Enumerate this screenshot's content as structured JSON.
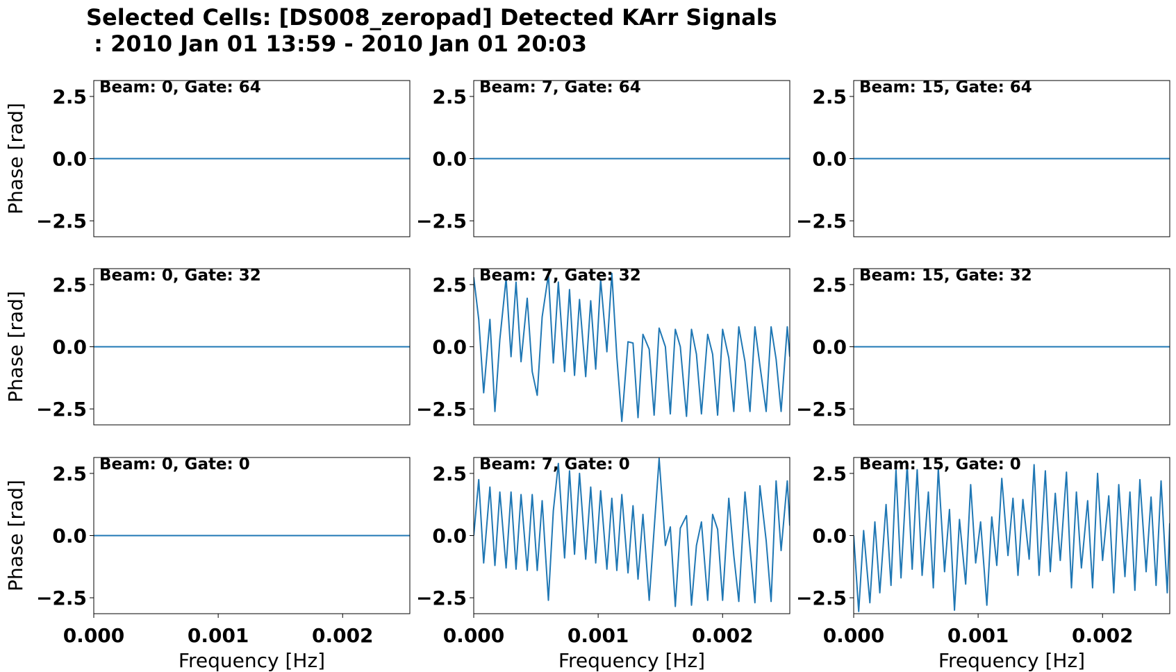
{
  "title_line1": "Selected Cells: [DS008_zeropad] Detected KArr Signals",
  "title_line2": " : 2010 Jan 01 13:59 - 2010 Jan 01 20:03",
  "chart_data": [
    {
      "type": "line",
      "label": "Beam: 0, Gate: 64",
      "xlabel": "",
      "ylabel": "Phase [rad]",
      "xlim": [
        0,
        0.00254
      ],
      "ylim": [
        -3.14,
        3.14
      ],
      "y_ticks": [
        "2.5",
        "0.0",
        "−2.5"
      ],
      "x_ticks": [],
      "series": [
        {
          "x": [
            0,
            0.00254
          ],
          "y": [
            0,
            0
          ]
        }
      ]
    },
    {
      "type": "line",
      "label": "Beam: 7, Gate: 64",
      "xlabel": "",
      "ylabel": "",
      "xlim": [
        0,
        0.00254
      ],
      "ylim": [
        -3.14,
        3.14
      ],
      "y_ticks": [
        "2.5",
        "0.0",
        "−2.5"
      ],
      "x_ticks": [],
      "series": [
        {
          "x": [
            0,
            0.00254
          ],
          "y": [
            0,
            0
          ]
        }
      ]
    },
    {
      "type": "line",
      "label": "Beam: 15, Gate: 64",
      "xlabel": "",
      "ylabel": "",
      "xlim": [
        0,
        0.00254
      ],
      "ylim": [
        -3.14,
        3.14
      ],
      "y_ticks": [
        "2.5",
        "0.0",
        "−2.5"
      ],
      "x_ticks": [],
      "series": [
        {
          "x": [
            0,
            0.00254
          ],
          "y": [
            0,
            0
          ]
        }
      ]
    },
    {
      "type": "line",
      "label": "Beam: 0, Gate: 32",
      "xlabel": "",
      "ylabel": "Phase [rad]",
      "xlim": [
        0,
        0.00254
      ],
      "ylim": [
        -3.14,
        3.14
      ],
      "y_ticks": [
        "2.5",
        "0.0",
        "−2.5"
      ],
      "x_ticks": [],
      "series": [
        {
          "x": [
            0,
            0.00254
          ],
          "y": [
            0,
            0
          ]
        }
      ]
    },
    {
      "type": "line",
      "label": "Beam: 7, Gate: 32",
      "xlabel": "",
      "ylabel": "",
      "xlim": [
        0,
        0.00254
      ],
      "ylim": [
        -3.14,
        3.14
      ],
      "y_ticks": [
        "2.5",
        "0.0",
        "−2.5"
      ],
      "x_ticks": [],
      "series": [
        {
          "x": [
            0,
            4e-05,
            8e-05,
            0.00013,
            0.00017,
            0.00021,
            0.00026,
            0.0003,
            0.00034,
            0.00038,
            0.00043,
            0.00047,
            0.00051,
            0.00055,
            0.0006,
            0.00064,
            0.00068,
            0.00073,
            0.00077,
            0.00081,
            0.00085,
            0.0009,
            0.00094,
            0.00098,
            0.00102,
            0.00107,
            0.00111,
            0.00115,
            0.00119,
            0.00124,
            0.00128,
            0.00132,
            0.00136,
            0.00141,
            0.00145,
            0.00149,
            0.00154,
            0.00158,
            0.00162,
            0.00166,
            0.00171,
            0.00175,
            0.00179,
            0.00183,
            0.00188,
            0.00192,
            0.00196,
            0.002,
            0.00205,
            0.00209,
            0.00213,
            0.00218,
            0.00222,
            0.00226,
            0.0023,
            0.00235,
            0.00239,
            0.00243,
            0.00247,
            0.00252,
            0.00254
          ],
          "y": [
            2.8,
            1.1,
            -1.85,
            1.1,
            -2.6,
            0.3,
            2.75,
            -0.4,
            2.6,
            -0.6,
            1.95,
            -1.0,
            -1.95,
            1.2,
            2.9,
            -0.65,
            2.6,
            -1.0,
            2.3,
            -1.15,
            1.9,
            -1.2,
            1.85,
            -0.9,
            2.7,
            -0.2,
            2.95,
            -0.4,
            -3.0,
            0.2,
            0.15,
            -2.85,
            0.5,
            -0.1,
            -2.75,
            0.75,
            0.0,
            -2.7,
            0.7,
            0.0,
            -2.8,
            0.7,
            -0.3,
            -2.7,
            0.5,
            -0.3,
            -2.75,
            0.7,
            -0.45,
            -2.6,
            0.8,
            -0.6,
            -2.6,
            0.8,
            -0.75,
            -2.6,
            0.8,
            -0.5,
            -2.6,
            0.8,
            -0.4
          ]
        }
      ]
    },
    {
      "type": "line",
      "label": "Beam: 15, Gate: 32",
      "xlabel": "",
      "ylabel": "",
      "xlim": [
        0,
        0.00254
      ],
      "ylim": [
        -3.14,
        3.14
      ],
      "y_ticks": [
        "2.5",
        "0.0",
        "−2.5"
      ],
      "x_ticks": [],
      "series": [
        {
          "x": [
            0,
            0.00254
          ],
          "y": [
            0,
            0
          ]
        }
      ]
    },
    {
      "type": "line",
      "label": "Beam: 0, Gate: 0",
      "xlabel": "Frequency [Hz]",
      "ylabel": "Phase [rad]",
      "xlim": [
        0,
        0.00254
      ],
      "ylim": [
        -3.14,
        3.14
      ],
      "y_ticks": [
        "2.5",
        "0.0",
        "−2.5"
      ],
      "x_ticks": [
        "0.000",
        "0.001",
        "0.002"
      ],
      "series": [
        {
          "x": [
            0,
            0.00254
          ],
          "y": [
            0,
            0
          ]
        }
      ]
    },
    {
      "type": "line",
      "label": "Beam: 7, Gate: 0",
      "xlabel": "Frequency [Hz]",
      "ylabel": "",
      "xlim": [
        0,
        0.00254
      ],
      "ylim": [
        -3.14,
        3.14
      ],
      "y_ticks": [
        "2.5",
        "0.0",
        "−2.5"
      ],
      "x_ticks": [
        "0.000",
        "0.001",
        "0.002"
      ],
      "series": [
        {
          "x": [
            0,
            4e-05,
            8e-05,
            0.00013,
            0.00017,
            0.00021,
            0.00026,
            0.0003,
            0.00034,
            0.00038,
            0.00043,
            0.00047,
            0.00051,
            0.00055,
            0.0006,
            0.00064,
            0.00068,
            0.00073,
            0.00077,
            0.00081,
            0.00085,
            0.0009,
            0.00094,
            0.00098,
            0.00102,
            0.00107,
            0.00111,
            0.00115,
            0.00119,
            0.00124,
            0.00128,
            0.00132,
            0.00136,
            0.00141,
            0.00145,
            0.00149,
            0.00154,
            0.00158,
            0.00162,
            0.00166,
            0.00171,
            0.00175,
            0.00179,
            0.00183,
            0.00188,
            0.00192,
            0.00196,
            0.002,
            0.00205,
            0.00209,
            0.00213,
            0.00218,
            0.00222,
            0.00226,
            0.0023,
            0.00235,
            0.00239,
            0.00243,
            0.00247,
            0.00252,
            0.00254
          ],
          "y": [
            0.0,
            2.25,
            -1.1,
            1.95,
            -1.2,
            1.75,
            -1.3,
            1.75,
            -1.35,
            1.65,
            -1.4,
            1.65,
            -1.4,
            1.4,
            -2.6,
            1.0,
            2.9,
            -0.9,
            2.6,
            -0.75,
            2.5,
            -0.95,
            1.95,
            -1.1,
            1.8,
            -1.35,
            1.5,
            -1.4,
            1.65,
            -1.5,
            1.2,
            -1.75,
            0.85,
            -2.6,
            0.25,
            3.1,
            -0.4,
            0.35,
            -2.85,
            0.3,
            0.8,
            -2.8,
            -0.4,
            0.55,
            -2.6,
            0.85,
            0.25,
            -2.6,
            1.5,
            -0.8,
            -2.65,
            1.75,
            -0.5,
            -2.7,
            2.0,
            -0.2,
            -2.65,
            2.2,
            -0.6,
            2.2,
            0.4
          ]
        }
      ]
    },
    {
      "type": "line",
      "label": "Beam: 15, Gate: 0",
      "xlabel": "Frequency [Hz]",
      "ylabel": "",
      "xlim": [
        0,
        0.00254
      ],
      "ylim": [
        -3.14,
        3.14
      ],
      "y_ticks": [
        "2.5",
        "0.0",
        "−2.5"
      ],
      "x_ticks": [
        "0.000",
        "0.001",
        "0.002"
      ],
      "series": [
        {
          "x": [
            0,
            4e-05,
            8e-05,
            0.00013,
            0.00017,
            0.00021,
            0.00026,
            0.0003,
            0.00034,
            0.00038,
            0.00043,
            0.00047,
            0.00051,
            0.00055,
            0.0006,
            0.00064,
            0.00068,
            0.00073,
            0.00077,
            0.00081,
            0.00085,
            0.0009,
            0.00094,
            0.00098,
            0.00102,
            0.00107,
            0.00111,
            0.00115,
            0.00119,
            0.00124,
            0.00128,
            0.00132,
            0.00136,
            0.00141,
            0.00145,
            0.00149,
            0.00154,
            0.00158,
            0.00162,
            0.00166,
            0.00171,
            0.00175,
            0.00179,
            0.00183,
            0.00188,
            0.00192,
            0.00196,
            0.002,
            0.00205,
            0.00209,
            0.00213,
            0.00218,
            0.00222,
            0.00226,
            0.0023,
            0.00235,
            0.00239,
            0.00243,
            0.00247,
            0.00252,
            0.00254
          ],
          "y": [
            0.0,
            -3.05,
            0.2,
            -2.7,
            0.55,
            -2.3,
            1.25,
            -2.0,
            2.65,
            -1.7,
            2.85,
            -1.35,
            2.65,
            -1.6,
            1.75,
            -2.1,
            2.7,
            -1.45,
            1.05,
            -3.0,
            0.65,
            -1.95,
            2.05,
            -1.1,
            0.55,
            -2.8,
            0.75,
            -1.2,
            2.3,
            -0.8,
            1.5,
            -1.6,
            1.45,
            -0.95,
            2.85,
            -1.6,
            2.6,
            -1.45,
            1.7,
            -1.0,
            2.55,
            -2.1,
            1.75,
            -1.3,
            1.4,
            -2.1,
            2.5,
            -1.0,
            1.6,
            -2.3,
            2.05,
            -1.65,
            1.75,
            -2.2,
            2.25,
            -1.45,
            1.55,
            -2.0,
            2.2,
            -2.3,
            0.5
          ]
        }
      ]
    }
  ]
}
